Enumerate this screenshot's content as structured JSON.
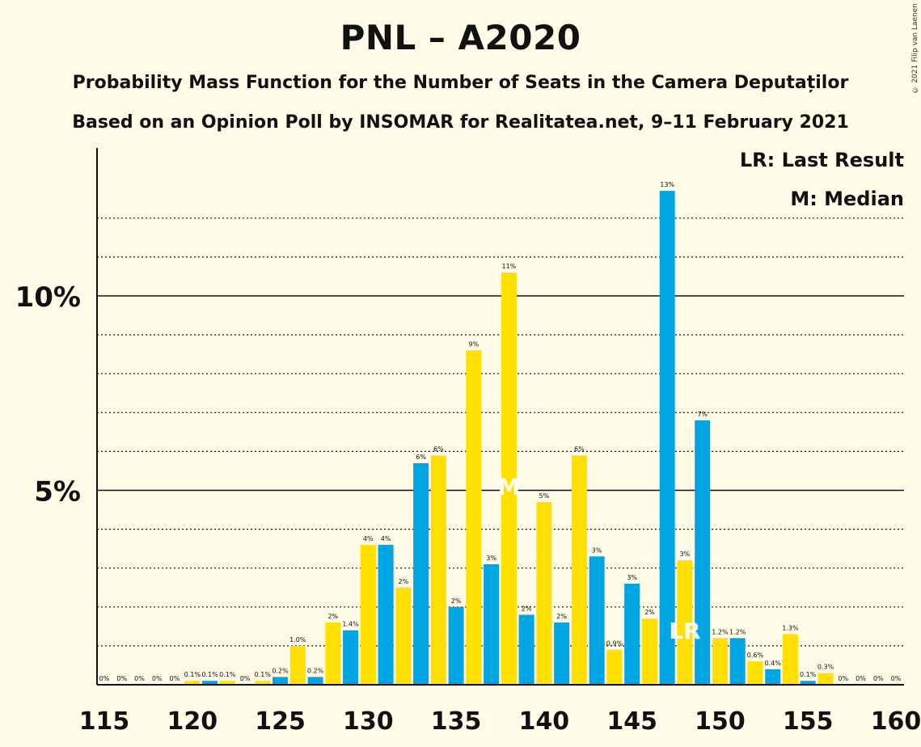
{
  "header": {
    "title": "PNL – A2020",
    "subtitle1": "Probability Mass Function for the Number of Seats in the Camera Deputaților",
    "subtitle2": "Based on an Opinion Poll by INSOMAR for Realitatea.net, 9–11 February 2021",
    "copyright": "© 2021 Filip van Laenen"
  },
  "legend": {
    "last_result": "LR: Last Result",
    "median": "M: Median"
  },
  "colors": {
    "background": "#FFFBE6",
    "bar_blue": "#00A5E3",
    "bar_yellow": "#FFE000",
    "text": "#111111"
  },
  "chart_data": {
    "type": "bar",
    "x": [
      115,
      116,
      117,
      118,
      119,
      120,
      121,
      122,
      123,
      124,
      125,
      126,
      127,
      128,
      129,
      130,
      131,
      132,
      133,
      134,
      135,
      136,
      137,
      138,
      139,
      140,
      141,
      142,
      143,
      144,
      145,
      146,
      147,
      148,
      149,
      150,
      151,
      152,
      153,
      154,
      155,
      156,
      157,
      158,
      159,
      160
    ],
    "values": [
      0,
      0,
      0,
      0,
      0,
      0.1,
      0.1,
      0.1,
      0,
      0.1,
      0.2,
      1.0,
      0.2,
      1.6,
      1.4,
      3.6,
      3.6,
      2.5,
      5.7,
      5.9,
      2.0,
      8.6,
      3.1,
      10.6,
      1.8,
      4.7,
      1.6,
      5.9,
      3.3,
      0.9,
      2.6,
      1.7,
      12.7,
      3.2,
      6.8,
      1.2,
      1.2,
      0.6,
      0.4,
      1.3,
      0.1,
      0.3,
      0,
      0,
      0,
      0
    ],
    "labels": [
      "0%",
      "0%",
      "0%",
      "0%",
      "0%",
      "0.1%",
      "0.1%",
      "0.1%",
      "0%",
      "0.1%",
      "0.2%",
      "1.0%",
      "0.2%",
      "2%",
      "1.4%",
      "4%",
      "4%",
      "2%",
      "6%",
      "6%",
      "2%",
      "9%",
      "3%",
      "11%",
      "2%",
      "5%",
      "2%",
      "6%",
      "3%",
      "0.9%",
      "3%",
      "2%",
      "13%",
      "3%",
      "7%",
      "1.2%",
      "1.2%",
      "0.6%",
      "0.4%",
      "1.3%",
      "0.1%",
      "0.3%",
      "0%",
      "0%",
      "0%",
      "0%"
    ],
    "xticks": [
      "115",
      "120",
      "125",
      "130",
      "135",
      "140",
      "145",
      "150",
      "155",
      "160"
    ],
    "yticks": [
      "5%",
      "10%"
    ],
    "ylim": [
      0,
      13.8
    ],
    "median_x": 138,
    "median_mark": "M",
    "last_result_x": 148,
    "last_result_mark": "LR",
    "grid": true,
    "gridline_values": [
      1,
      2,
      3,
      4,
      6,
      7,
      8,
      9,
      11,
      12
    ],
    "major_gridline_values": [
      5,
      10
    ]
  }
}
